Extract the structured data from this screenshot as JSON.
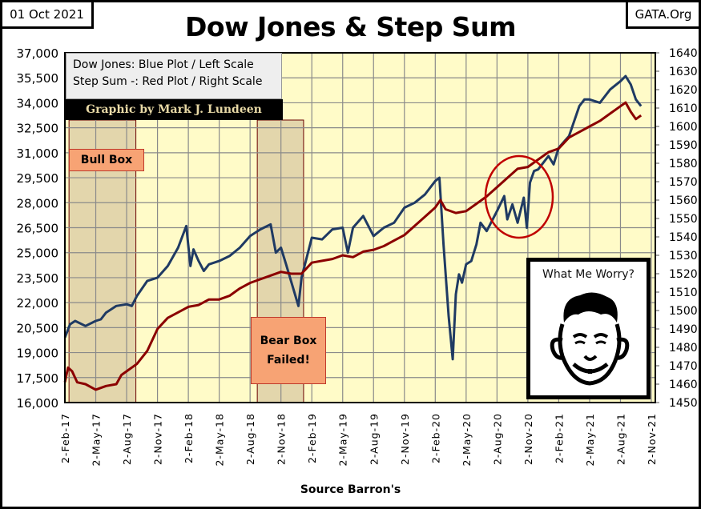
{
  "header": {
    "date": "01 Oct 2021",
    "site": "GATA.Org",
    "title": "Dow Jones & Step Sum"
  },
  "legend": {
    "line1": "Dow Jones: Blue Plot / Left Scale",
    "line2": "Step Sum -: Red Plot / Right Scale",
    "credit": "Graphic by Mark J. Lundeen"
  },
  "annotations": {
    "bull_box": "Bull Box",
    "bear_box_line1": "Bear Box",
    "bear_box_line2": "Failed!",
    "mad_caption": "What Me Worry?"
  },
  "source": "Source Barron's",
  "colors": {
    "dow": "#1f3a63",
    "step": "#8b0000",
    "plot_bg": "#fffbc8",
    "box_fill": "#d9c9a3",
    "label_fill": "#f7a374",
    "circle": "#c00000"
  },
  "chart_data": {
    "type": "line",
    "title": "Dow Jones & Step Sum",
    "xlabel": "Source Barron's",
    "x_unit": "months since 2-Feb-17",
    "x_ticks": [
      "2-Feb-17",
      "2-May-17",
      "2-Aug-17",
      "2-Nov-17",
      "2-Feb-18",
      "2-May-18",
      "2-Aug-18",
      "2-Nov-18",
      "2-Feb-19",
      "2-May-19",
      "2-Aug-19",
      "2-Nov-19",
      "2-Feb-20",
      "2-May-20",
      "2-Aug-20",
      "2-Nov-20",
      "2-Feb-21",
      "2-May-21",
      "2-Aug-21",
      "2-Nov-21"
    ],
    "xlim": [
      0,
      57
    ],
    "left_axis": {
      "label": "Dow Jones",
      "ylim": [
        16000,
        37000
      ],
      "ticks": [
        "16,000",
        "17,500",
        "19,000",
        "20,500",
        "22,000",
        "23,500",
        "25,000",
        "26,500",
        "28,000",
        "29,500",
        "31,000",
        "32,500",
        "34,000",
        "35,500",
        "37,000"
      ]
    },
    "right_axis": {
      "label": "Step Sum",
      "ylim": [
        1450,
        1640
      ],
      "ticks": [
        "1450",
        "1460",
        "1470",
        "1480",
        "1490",
        "1500",
        "1510",
        "1520",
        "1530",
        "1540",
        "1550",
        "1560",
        "1570",
        "1580",
        "1590",
        "1600",
        "1610",
        "1620",
        "1630",
        "1640"
      ]
    },
    "grid": true,
    "series": [
      {
        "name": "Dow Jones",
        "axis": "left",
        "points": [
          [
            0,
            19900
          ],
          [
            0.5,
            20700
          ],
          [
            1,
            20900
          ],
          [
            2,
            20600
          ],
          [
            3,
            20900
          ],
          [
            3.5,
            21000
          ],
          [
            4,
            21400
          ],
          [
            5,
            21800
          ],
          [
            6,
            21900
          ],
          [
            6.5,
            21800
          ],
          [
            7,
            22400
          ],
          [
            8,
            23300
          ],
          [
            9,
            23500
          ],
          [
            10,
            24200
          ],
          [
            11,
            25300
          ],
          [
            11.8,
            26600
          ],
          [
            12.2,
            24200
          ],
          [
            12.5,
            25200
          ],
          [
            13,
            24500
          ],
          [
            13.5,
            23900
          ],
          [
            14,
            24300
          ],
          [
            15,
            24500
          ],
          [
            16,
            24800
          ],
          [
            17,
            25300
          ],
          [
            18,
            26000
          ],
          [
            19,
            26400
          ],
          [
            20,
            26700
          ],
          [
            20.5,
            25000
          ],
          [
            21,
            25300
          ],
          [
            21.5,
            24300
          ],
          [
            22.7,
            21800
          ],
          [
            23,
            23500
          ],
          [
            23.5,
            24700
          ],
          [
            24,
            25900
          ],
          [
            25,
            25800
          ],
          [
            26,
            26400
          ],
          [
            27,
            26500
          ],
          [
            27.5,
            25000
          ],
          [
            28,
            26500
          ],
          [
            29,
            27200
          ],
          [
            30,
            26000
          ],
          [
            31,
            26500
          ],
          [
            32,
            26800
          ],
          [
            33,
            27700
          ],
          [
            34,
            28000
          ],
          [
            35,
            28500
          ],
          [
            36,
            29300
          ],
          [
            36.4,
            29500
          ],
          [
            36.8,
            25500
          ],
          [
            37.3,
            21200
          ],
          [
            37.7,
            18600
          ],
          [
            38,
            22500
          ],
          [
            38.3,
            23700
          ],
          [
            38.6,
            23200
          ],
          [
            39,
            24300
          ],
          [
            39.5,
            24500
          ],
          [
            40,
            25500
          ],
          [
            40.4,
            26800
          ],
          [
            41,
            26300
          ],
          [
            42,
            27500
          ],
          [
            42.7,
            28400
          ],
          [
            43,
            27000
          ],
          [
            43.5,
            27900
          ],
          [
            44,
            26800
          ],
          [
            44.6,
            28300
          ],
          [
            44.9,
            26500
          ],
          [
            45.2,
            29200
          ],
          [
            45.6,
            29900
          ],
          [
            46,
            30000
          ],
          [
            47,
            30800
          ],
          [
            47.5,
            30300
          ],
          [
            48,
            31300
          ],
          [
            49,
            32000
          ],
          [
            50,
            33800
          ],
          [
            50.5,
            34200
          ],
          [
            51,
            34200
          ],
          [
            52,
            34000
          ],
          [
            53,
            34800
          ],
          [
            54,
            35300
          ],
          [
            54.5,
            35600
          ],
          [
            55,
            35100
          ],
          [
            55.5,
            34200
          ],
          [
            56,
            33800
          ]
        ]
      },
      {
        "name": "Step Sum",
        "axis": "right",
        "points": [
          [
            0,
            1461
          ],
          [
            0.3,
            1469
          ],
          [
            0.7,
            1467
          ],
          [
            1.2,
            1461
          ],
          [
            2,
            1460
          ],
          [
            3,
            1457
          ],
          [
            4,
            1459
          ],
          [
            5,
            1460
          ],
          [
            5.5,
            1465
          ],
          [
            6,
            1467
          ],
          [
            7,
            1471
          ],
          [
            8,
            1478
          ],
          [
            9,
            1490
          ],
          [
            10,
            1496
          ],
          [
            11,
            1499
          ],
          [
            12,
            1502
          ],
          [
            13,
            1503
          ],
          [
            14,
            1506
          ],
          [
            15,
            1506
          ],
          [
            16,
            1508
          ],
          [
            17,
            1512
          ],
          [
            18,
            1515
          ],
          [
            19,
            1517
          ],
          [
            20,
            1519
          ],
          [
            21,
            1521
          ],
          [
            22,
            1520
          ],
          [
            23,
            1520
          ],
          [
            24,
            1526
          ],
          [
            25,
            1527
          ],
          [
            26,
            1528
          ],
          [
            27,
            1530
          ],
          [
            28,
            1529
          ],
          [
            29,
            1532
          ],
          [
            30,
            1533
          ],
          [
            31,
            1535
          ],
          [
            32,
            1538
          ],
          [
            33,
            1541
          ],
          [
            34,
            1546
          ],
          [
            35,
            1551
          ],
          [
            36,
            1556
          ],
          [
            36.5,
            1560
          ],
          [
            37,
            1555
          ],
          [
            38,
            1553
          ],
          [
            39,
            1554
          ],
          [
            40,
            1558
          ],
          [
            41,
            1562
          ],
          [
            42,
            1567
          ],
          [
            43,
            1572
          ],
          [
            44,
            1577
          ],
          [
            45,
            1578
          ],
          [
            46,
            1582
          ],
          [
            47,
            1586
          ],
          [
            48,
            1588
          ],
          [
            49,
            1594
          ],
          [
            50,
            1597
          ],
          [
            51,
            1600
          ],
          [
            52,
            1603
          ],
          [
            53,
            1607
          ],
          [
            54,
            1611
          ],
          [
            54.5,
            1613
          ],
          [
            55,
            1608
          ],
          [
            55.5,
            1604
          ],
          [
            56,
            1606
          ]
        ]
      }
    ]
  }
}
